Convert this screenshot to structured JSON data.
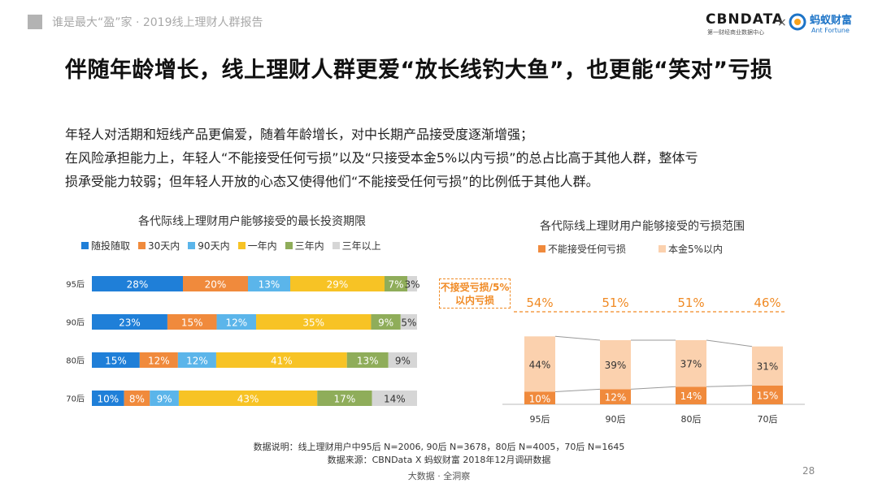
{
  "header": {
    "text": "谁是最大“盈”家 · 2019线上理财人群报告"
  },
  "logos": {
    "cbn": "CBNDATA",
    "cbn_sub": "第一财经商业数据中心",
    "x": "×",
    "ant": "蚂蚁财富",
    "ant_sub": "Ant Fortune"
  },
  "title": "伴随年龄增长，线上理财人群更爱“放长线钓大鱼”，也更能“笑对”亏损",
  "description": [
    "年轻人对活期和短线产品更偏爱，随着年龄增长，对中长期产品接受度逐渐增强；",
    "在风险承担能力上，年轻人“不能接受任何亏损”以及“只接受本金5%以内亏损”的总占比高于其他人群，整体亏",
    "损承受能力较弱；但年轻人开放的心态又使得他们“不能接受任何亏损”的比例低于其他人群。"
  ],
  "chart_data": [
    {
      "type": "bar",
      "orientation": "horizontal-stacked",
      "title": "各代际线上理财用户能够接受的最长投资期限",
      "categories": [
        "95后",
        "90后",
        "80后",
        "70后"
      ],
      "series": [
        {
          "name": "随投随取",
          "color": "#1f7fd8",
          "values": [
            28,
            23,
            15,
            10
          ]
        },
        {
          "name": "30天内",
          "color": "#f08a3c",
          "values": [
            20,
            15,
            12,
            8
          ]
        },
        {
          "name": "90天内",
          "color": "#5bb5ea",
          "values": [
            13,
            12,
            12,
            9
          ]
        },
        {
          "name": "一年内",
          "color": "#f7c325",
          "values": [
            29,
            35,
            41,
            43
          ]
        },
        {
          "name": "三年内",
          "color": "#8fad5a",
          "values": [
            7,
            9,
            13,
            17
          ]
        },
        {
          "name": "三年以上",
          "color": "#d6d6d6",
          "values": [
            3,
            5,
            9,
            14
          ]
        }
      ],
      "data_labels": "percent"
    },
    {
      "type": "bar",
      "orientation": "vertical-stacked",
      "title": "各代际线上理财用户能够接受的亏损范围",
      "categories": [
        "95后",
        "90后",
        "80后",
        "70后"
      ],
      "series": [
        {
          "name": "不能接受任何亏损",
          "color": "#f08a3c",
          "values": [
            10,
            12,
            14,
            15
          ]
        },
        {
          "name": "本金5%以内",
          "color": "#fbd1ae",
          "values": [
            44,
            39,
            37,
            31
          ]
        }
      ],
      "totals": [
        54,
        51,
        51,
        46
      ],
      "totals_label": "不接受亏损/5%以内亏损",
      "data_labels": "percent"
    }
  ],
  "notes": {
    "line1": "数据说明：线上理财用户中95后 N=2006, 90后 N=3678，80后 N=4005，70后 N=1645",
    "line2": "数据来源：CBNData X 蚂蚁财富 2018年12月调研数据"
  },
  "footer": "大数据 · 全洞察",
  "page_number": "28"
}
